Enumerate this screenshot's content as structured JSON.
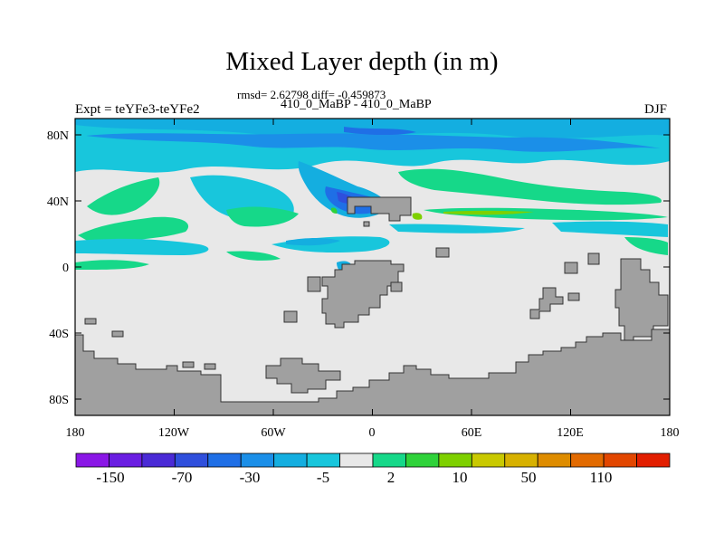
{
  "title": "Mixed Layer depth (in m)",
  "stats": "rmsd= 2.62798 diff= -0.459873",
  "subtitle": "410_0_MaBP - 410_0_MaBP",
  "expt": "Expt = teYFe3-teYFe2",
  "season": "DJF",
  "axes": {
    "x_ticks": [
      "180",
      "120W",
      "60W",
      "0",
      "60E",
      "120E",
      "180"
    ],
    "y_ticks": [
      "80N",
      "40N",
      "0",
      "40S",
      "80S"
    ]
  },
  "colorbar": {
    "labels": [
      "-150",
      "-70",
      "-30",
      "-5",
      "2",
      "10",
      "50",
      "110"
    ],
    "colors": [
      "#8a17e6",
      "#6a1ee2",
      "#4a2ad6",
      "#2f4fdc",
      "#1f6fe6",
      "#1b8fe8",
      "#14aee0",
      "#18c6dc",
      "#e8e8e8",
      "#16d889",
      "#2fd23a",
      "#7ed000",
      "#c9c900",
      "#d7b100",
      "#de8c00",
      "#e26a00",
      "#e24600",
      "#e21e00"
    ]
  },
  "colors": {
    "land": "#a0a0a0",
    "ocean_neutral": "#e8e8e8",
    "cyan_light": "#18c6dc",
    "cyan": "#14aee0",
    "blue": "#1b8fe8",
    "blue_dark": "#1f6fe6",
    "navy": "#2f4fdc",
    "green": "#16d889",
    "bright_green": "#2fd23a",
    "yellow_green": "#7ed000"
  }
}
